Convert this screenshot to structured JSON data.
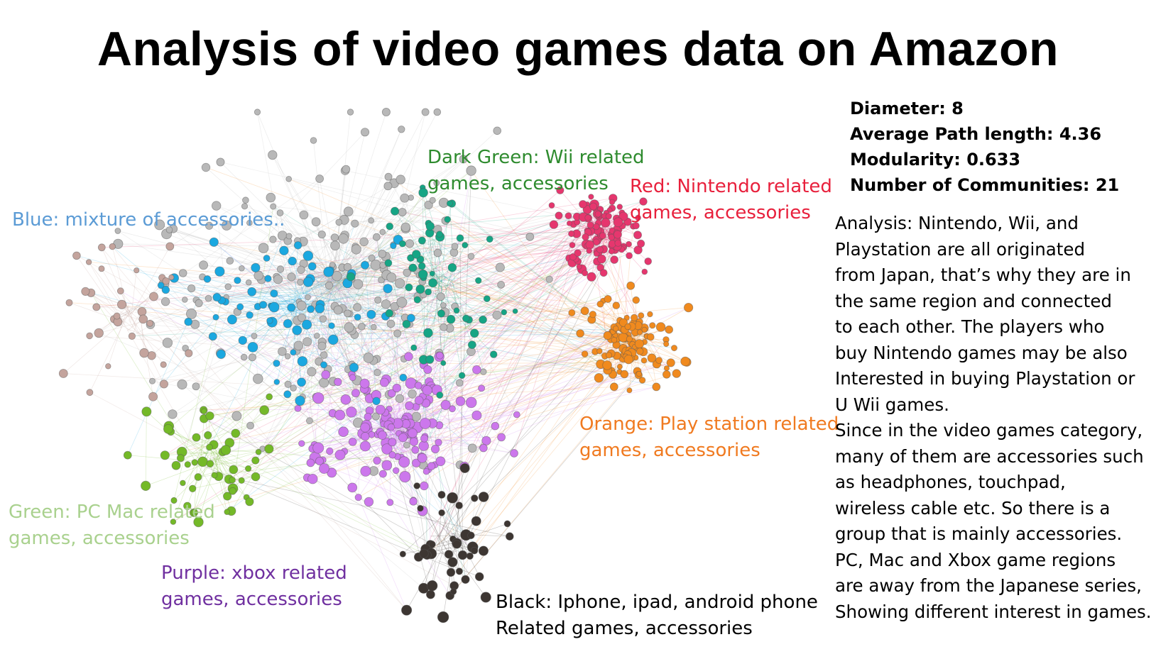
{
  "title": "Analysis of video games data on Amazon",
  "stats": [
    "Diameter: 8",
    "Average Path length: 4.36",
    "Modularity: 0.633",
    "Number of Communities: 21"
  ],
  "analysis_lines": [
    "Analysis: Nintendo, Wii, and",
    "Playstation are all originated",
    "from Japan, that’s why they are in",
    "the same region and connected",
    "to each other. The players who",
    " buy Nintendo games may be also",
    "Interested in buying Playstation or",
    "U Wii games.",
    "Since in the video games category,",
    "many of them are accessories such",
    " as headphones, touchpad,",
    "wireless cable etc. So there is a",
    "group that is mainly accessories.",
    "PC, Mac and Xbox game regions",
    "are away from the Japanese series,",
    "Showing different interest in games."
  ],
  "labels": {
    "blue": "Blue: mixture of accessories..",
    "dark_green": [
      "Dark Green: Wii related",
      "games, accessories"
    ],
    "red": [
      "Red: Nintendo related",
      "games, accessories"
    ],
    "orange": [
      "Orange: Play station related",
      "games, accessories"
    ],
    "green": [
      "Green: PC Mac related",
      "games, accessories"
    ],
    "purple": [
      "Purple: xbox related",
      "games, accessories"
    ],
    "black": [
      "Black: Iphone, ipad, android phone",
      "Related games, accessories"
    ]
  },
  "colors": {
    "blue": "#1ba8e0",
    "dark_green": "#16a585",
    "red": "#e6366e",
    "orange": "#f08a1e",
    "green": "#74b928",
    "purple": "#cc77ec",
    "black": "#3d3632",
    "gray": "#b8b8b8",
    "brown": "#c4a49d",
    "blue_label": "#5b9bd5",
    "dark_green_label": "#2e8b2e",
    "red_label": "#e8203c",
    "orange_label": "#f07a20",
    "green_label": "#a9d18e",
    "purple_label": "#7030a0",
    "black_label": "#000000"
  }
}
